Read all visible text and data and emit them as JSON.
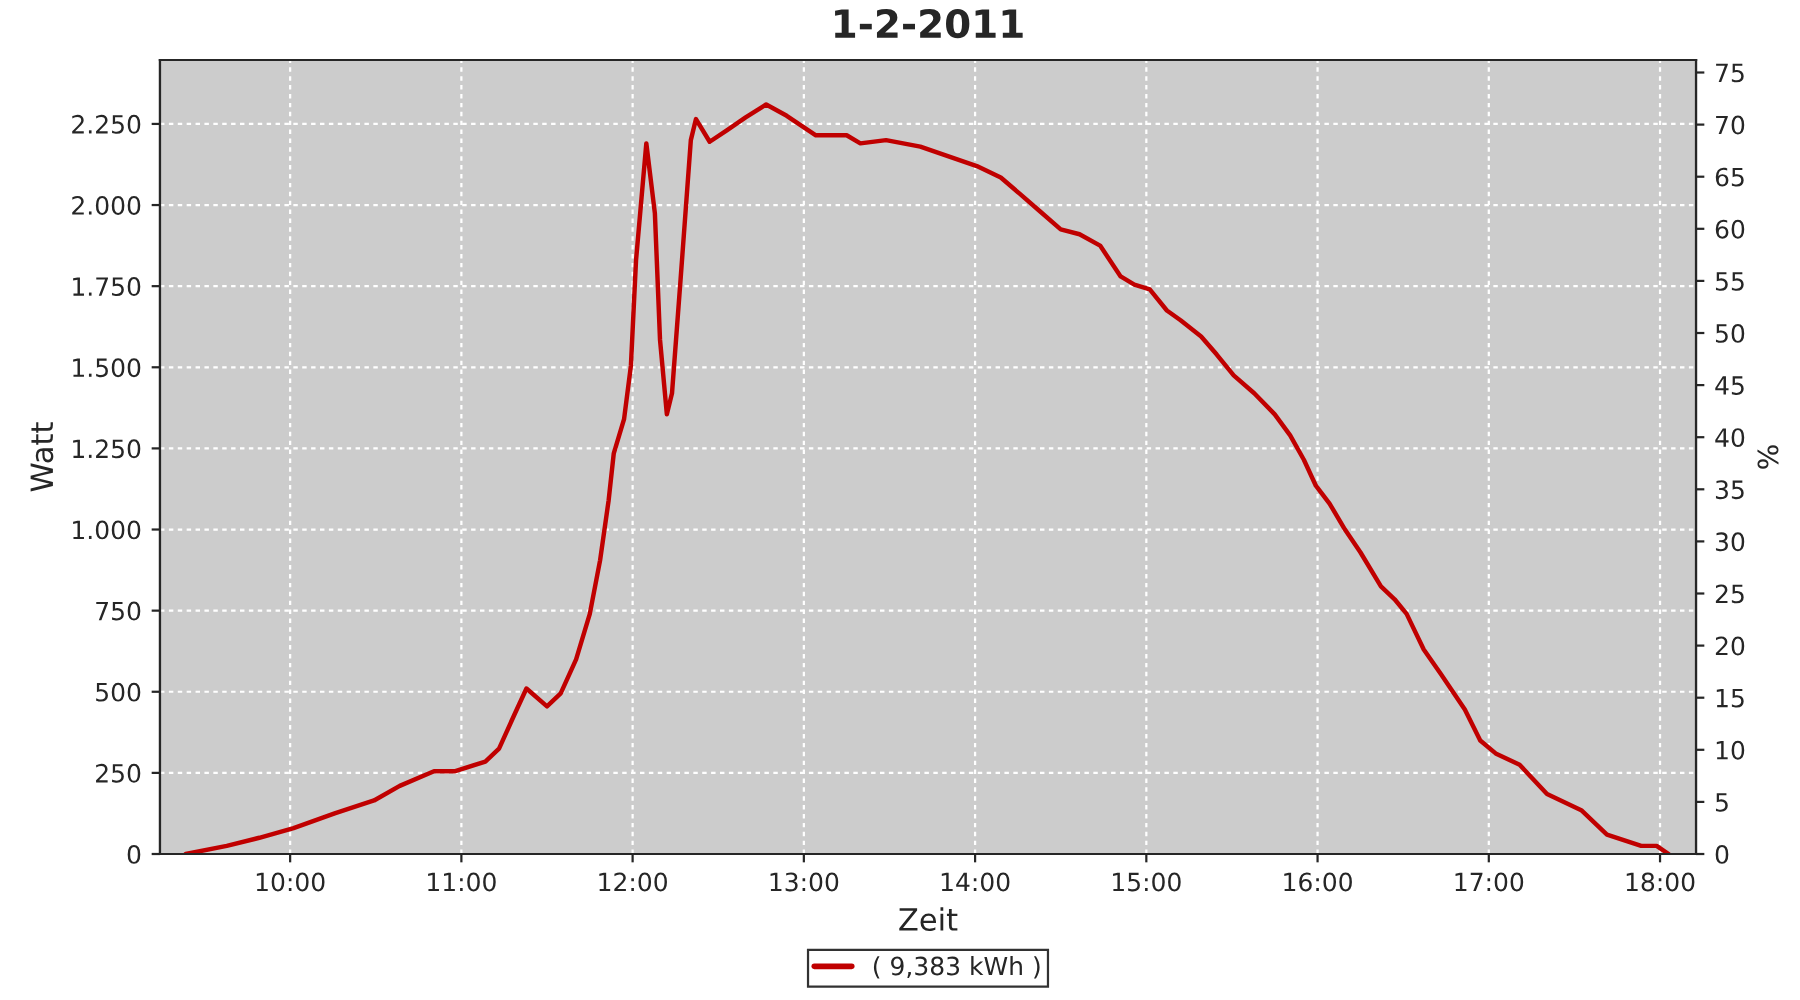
{
  "chart_data": {
    "type": "line",
    "title": "1-2-2011",
    "xlabel": "Zeit",
    "ylabel": "Watt",
    "y2label": "%",
    "x": [
      9.39,
      9.63,
      9.82,
      10.02,
      10.26,
      10.49,
      10.64,
      10.84,
      10.96,
      11.14,
      11.22,
      11.31,
      11.38,
      11.5,
      11.58,
      11.67,
      11.75,
      11.81,
      11.86,
      11.89,
      11.95,
      11.99,
      12.02,
      12.08,
      12.13,
      12.16,
      12.2,
      12.23,
      12.28,
      12.34,
      12.37,
      12.45,
      12.55,
      12.66,
      12.78,
      12.9,
      13.07,
      13.25,
      13.33,
      13.48,
      13.68,
      14.01,
      14.15,
      14.26,
      14.38,
      14.5,
      14.61,
      14.73,
      14.85,
      14.93,
      15.02,
      15.12,
      15.2,
      15.32,
      15.41,
      15.51,
      15.63,
      15.75,
      15.84,
      15.92,
      15.99,
      16.07,
      16.16,
      16.25,
      16.37,
      16.45,
      16.52,
      16.62,
      16.72,
      16.86,
      16.95,
      17.04,
      17.18,
      17.34,
      17.54,
      17.69,
      17.89,
      17.98,
      18.05
    ],
    "series": [
      {
        "name": "( 9,383 kWh )",
        "color": "#c00000",
        "values": [
          0,
          25,
          50,
          80,
          125,
          165,
          210,
          255,
          255,
          285,
          325,
          430,
          510,
          455,
          495,
          600,
          740,
          905,
          1090,
          1235,
          1340,
          1505,
          1830,
          2190,
          1975,
          1585,
          1355,
          1420,
          1770,
          2200,
          2265,
          2195,
          2230,
          2270,
          2310,
          2275,
          2215,
          2215,
          2190,
          2200,
          2180,
          2120,
          2085,
          2035,
          1980,
          1925,
          1910,
          1875,
          1780,
          1755,
          1740,
          1675,
          1645,
          1595,
          1540,
          1475,
          1420,
          1355,
          1290,
          1215,
          1135,
          1080,
          1000,
          930,
          825,
          785,
          740,
          630,
          555,
          445,
          350,
          310,
          275,
          185,
          135,
          60,
          25,
          25,
          0
        ]
      }
    ],
    "xlim": [
      9.24,
      18.21
    ],
    "xticks": [
      {
        "value": 10,
        "label": "10:00"
      },
      {
        "value": 11,
        "label": "11:00"
      },
      {
        "value": 12,
        "label": "12:00"
      },
      {
        "value": 13,
        "label": "13:00"
      },
      {
        "value": 14,
        "label": "14:00"
      },
      {
        "value": 15,
        "label": "15:00"
      },
      {
        "value": 16,
        "label": "16:00"
      },
      {
        "value": 17,
        "label": "17:00"
      },
      {
        "value": 18,
        "label": "18:00"
      }
    ],
    "ylim": [
      0,
      2447
    ],
    "yticks": [
      0,
      250,
      500,
      750,
      {
        "value": 1000,
        "label": "1.000"
      },
      {
        "value": 1250,
        "label": "1.250"
      },
      {
        "value": 1500,
        "label": "1.500"
      },
      {
        "value": 1750,
        "label": "1.750"
      },
      {
        "value": 2000,
        "label": "2.000"
      },
      {
        "value": 2250,
        "label": "2.250"
      }
    ],
    "y2lim": [
      0,
      76.2
    ],
    "y2ticks": [
      0,
      5,
      10,
      15,
      20,
      25,
      30,
      35,
      40,
      45,
      50,
      55,
      60,
      65,
      70,
      75
    ],
    "grid": true,
    "legend": "bottom",
    "line_style": "solid",
    "marker": "none"
  }
}
